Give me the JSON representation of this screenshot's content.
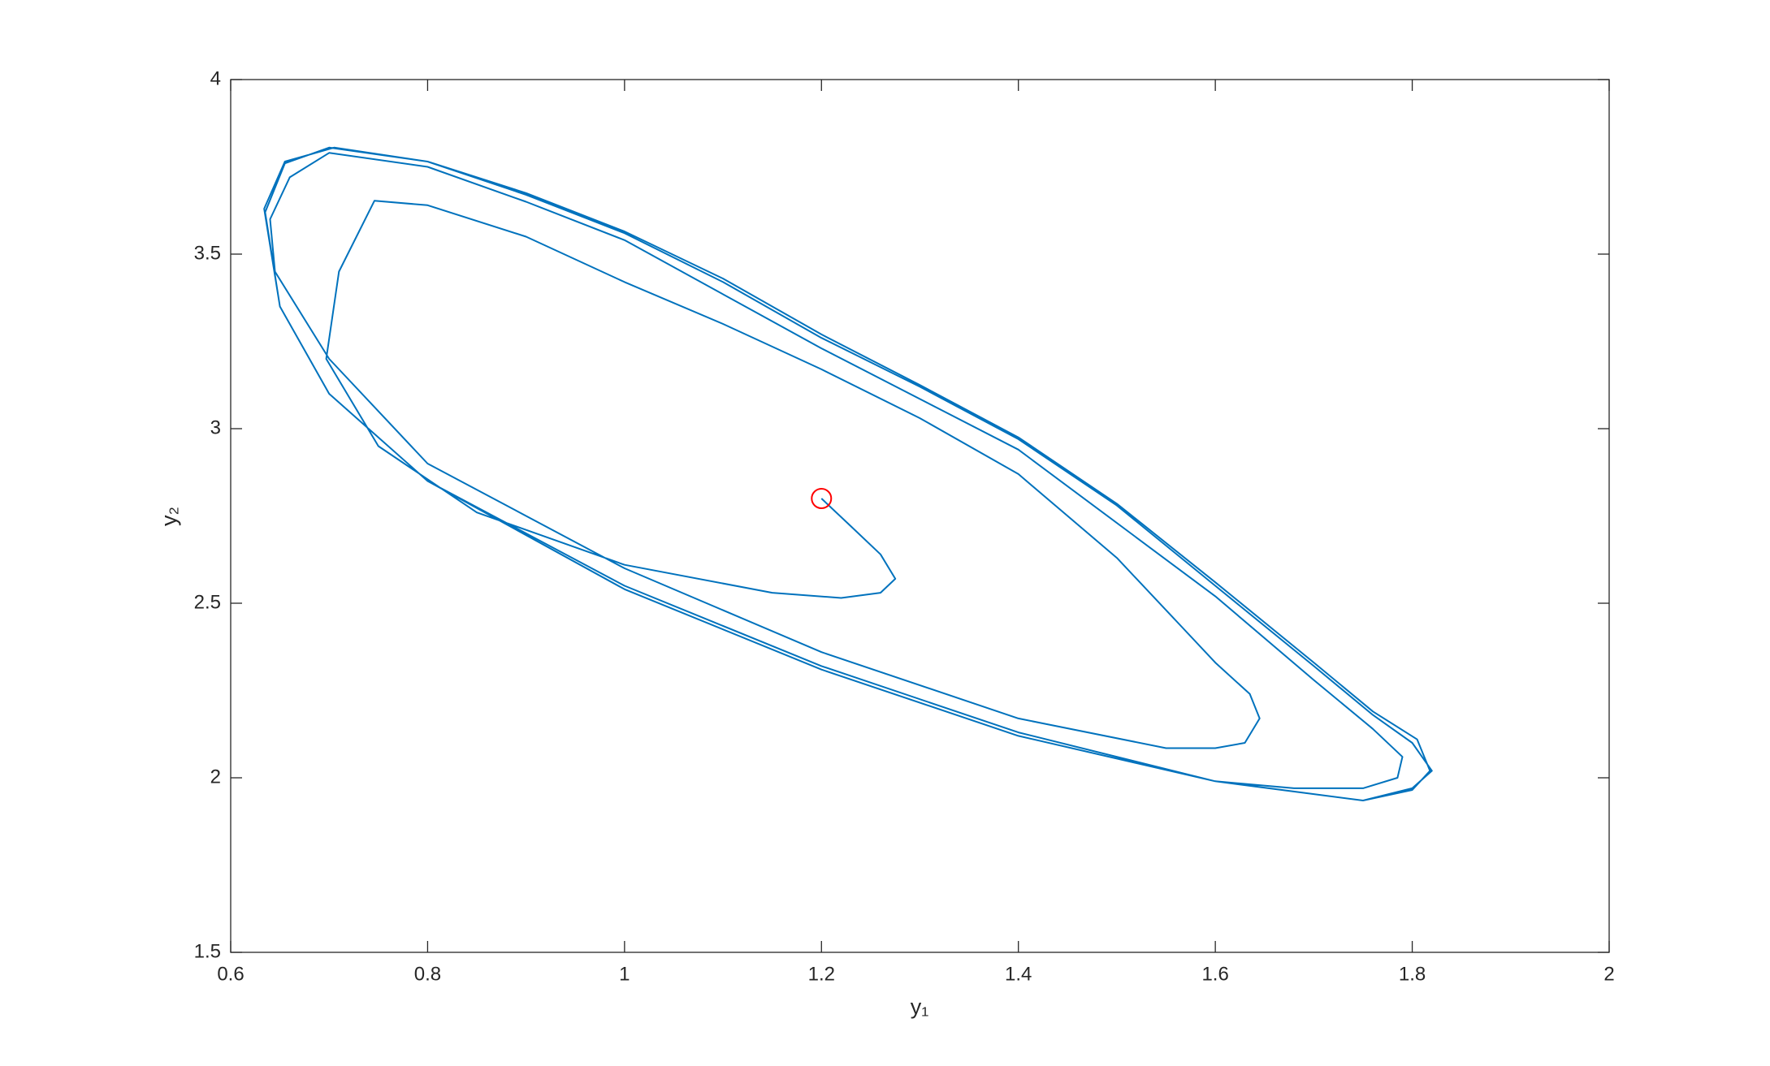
{
  "chart_data": {
    "type": "line",
    "xlabel": "y₁",
    "ylabel": "y₂",
    "color": "#0072bd",
    "x": [
      1.2,
      1.23,
      1.26,
      1.275,
      1.26,
      1.22,
      1.15,
      1.0,
      0.85,
      0.75,
      0.697,
      0.71,
      0.746,
      0.8,
      0.9,
      1.0,
      1.1,
      1.2,
      1.3,
      1.4,
      1.5,
      1.56,
      1.6,
      1.635,
      1.645,
      1.63,
      1.6,
      1.55,
      1.4,
      1.2,
      1.0,
      0.8,
      0.7,
      0.645,
      0.64,
      0.66,
      0.7,
      0.8,
      0.9,
      1.0,
      1.2,
      1.4,
      1.6,
      1.7,
      1.76,
      1.79,
      1.785,
      1.75,
      1.68,
      1.6,
      1.4,
      1.2,
      1.0,
      0.8,
      0.7,
      0.65,
      0.635,
      0.655,
      0.7,
      0.8,
      0.9,
      1.0,
      1.1,
      1.2,
      1.3,
      1.4,
      1.5,
      1.6,
      1.7,
      1.76,
      1.8,
      1.82,
      1.8,
      1.75,
      1.6,
      1.4,
      1.2,
      1.0,
      0.8,
      0.7,
      0.65,
      0.634,
      0.655,
      0.705,
      0.8,
      0.9,
      1.0,
      1.1,
      1.2,
      1.3,
      1.4,
      1.5,
      1.6,
      1.7,
      1.76,
      1.805,
      1.818,
      1.8,
      1.75
    ],
    "values": [
      2.8,
      2.72,
      2.64,
      2.57,
      2.53,
      2.515,
      2.53,
      2.61,
      2.76,
      2.95,
      3.2,
      3.45,
      3.653,
      3.64,
      3.55,
      3.42,
      3.3,
      3.17,
      3.03,
      2.87,
      2.63,
      2.45,
      2.33,
      2.24,
      2.17,
      2.1,
      2.085,
      2.085,
      2.17,
      2.36,
      2.6,
      2.9,
      3.2,
      3.45,
      3.6,
      3.72,
      3.79,
      3.75,
      3.65,
      3.54,
      3.23,
      2.94,
      2.52,
      2.28,
      2.14,
      2.06,
      2.0,
      1.97,
      1.97,
      1.99,
      2.12,
      2.31,
      2.54,
      2.85,
      3.1,
      3.35,
      3.62,
      3.76,
      3.805,
      3.765,
      3.67,
      3.56,
      3.42,
      3.26,
      3.12,
      2.97,
      2.78,
      2.55,
      2.32,
      2.18,
      2.1,
      2.02,
      1.97,
      1.935,
      1.99,
      2.13,
      2.32,
      2.55,
      2.85,
      3.1,
      3.35,
      3.63,
      3.765,
      3.805,
      3.765,
      3.675,
      3.565,
      3.43,
      3.27,
      3.125,
      2.975,
      2.785,
      2.56,
      2.33,
      2.19,
      2.11,
      2.02,
      1.965,
      1.935
    ],
    "start_point": {
      "x": 1.2,
      "y": 2.8,
      "color": "#ff0000"
    },
    "xlim": [
      0.6,
      2
    ],
    "xticks": [
      0.6,
      0.8,
      1,
      1.2,
      1.4,
      1.6,
      1.8,
      2
    ],
    "ylim": [
      1.5,
      4
    ],
    "yticks": [
      1.5,
      2,
      2.5,
      3,
      3.5,
      4
    ]
  }
}
